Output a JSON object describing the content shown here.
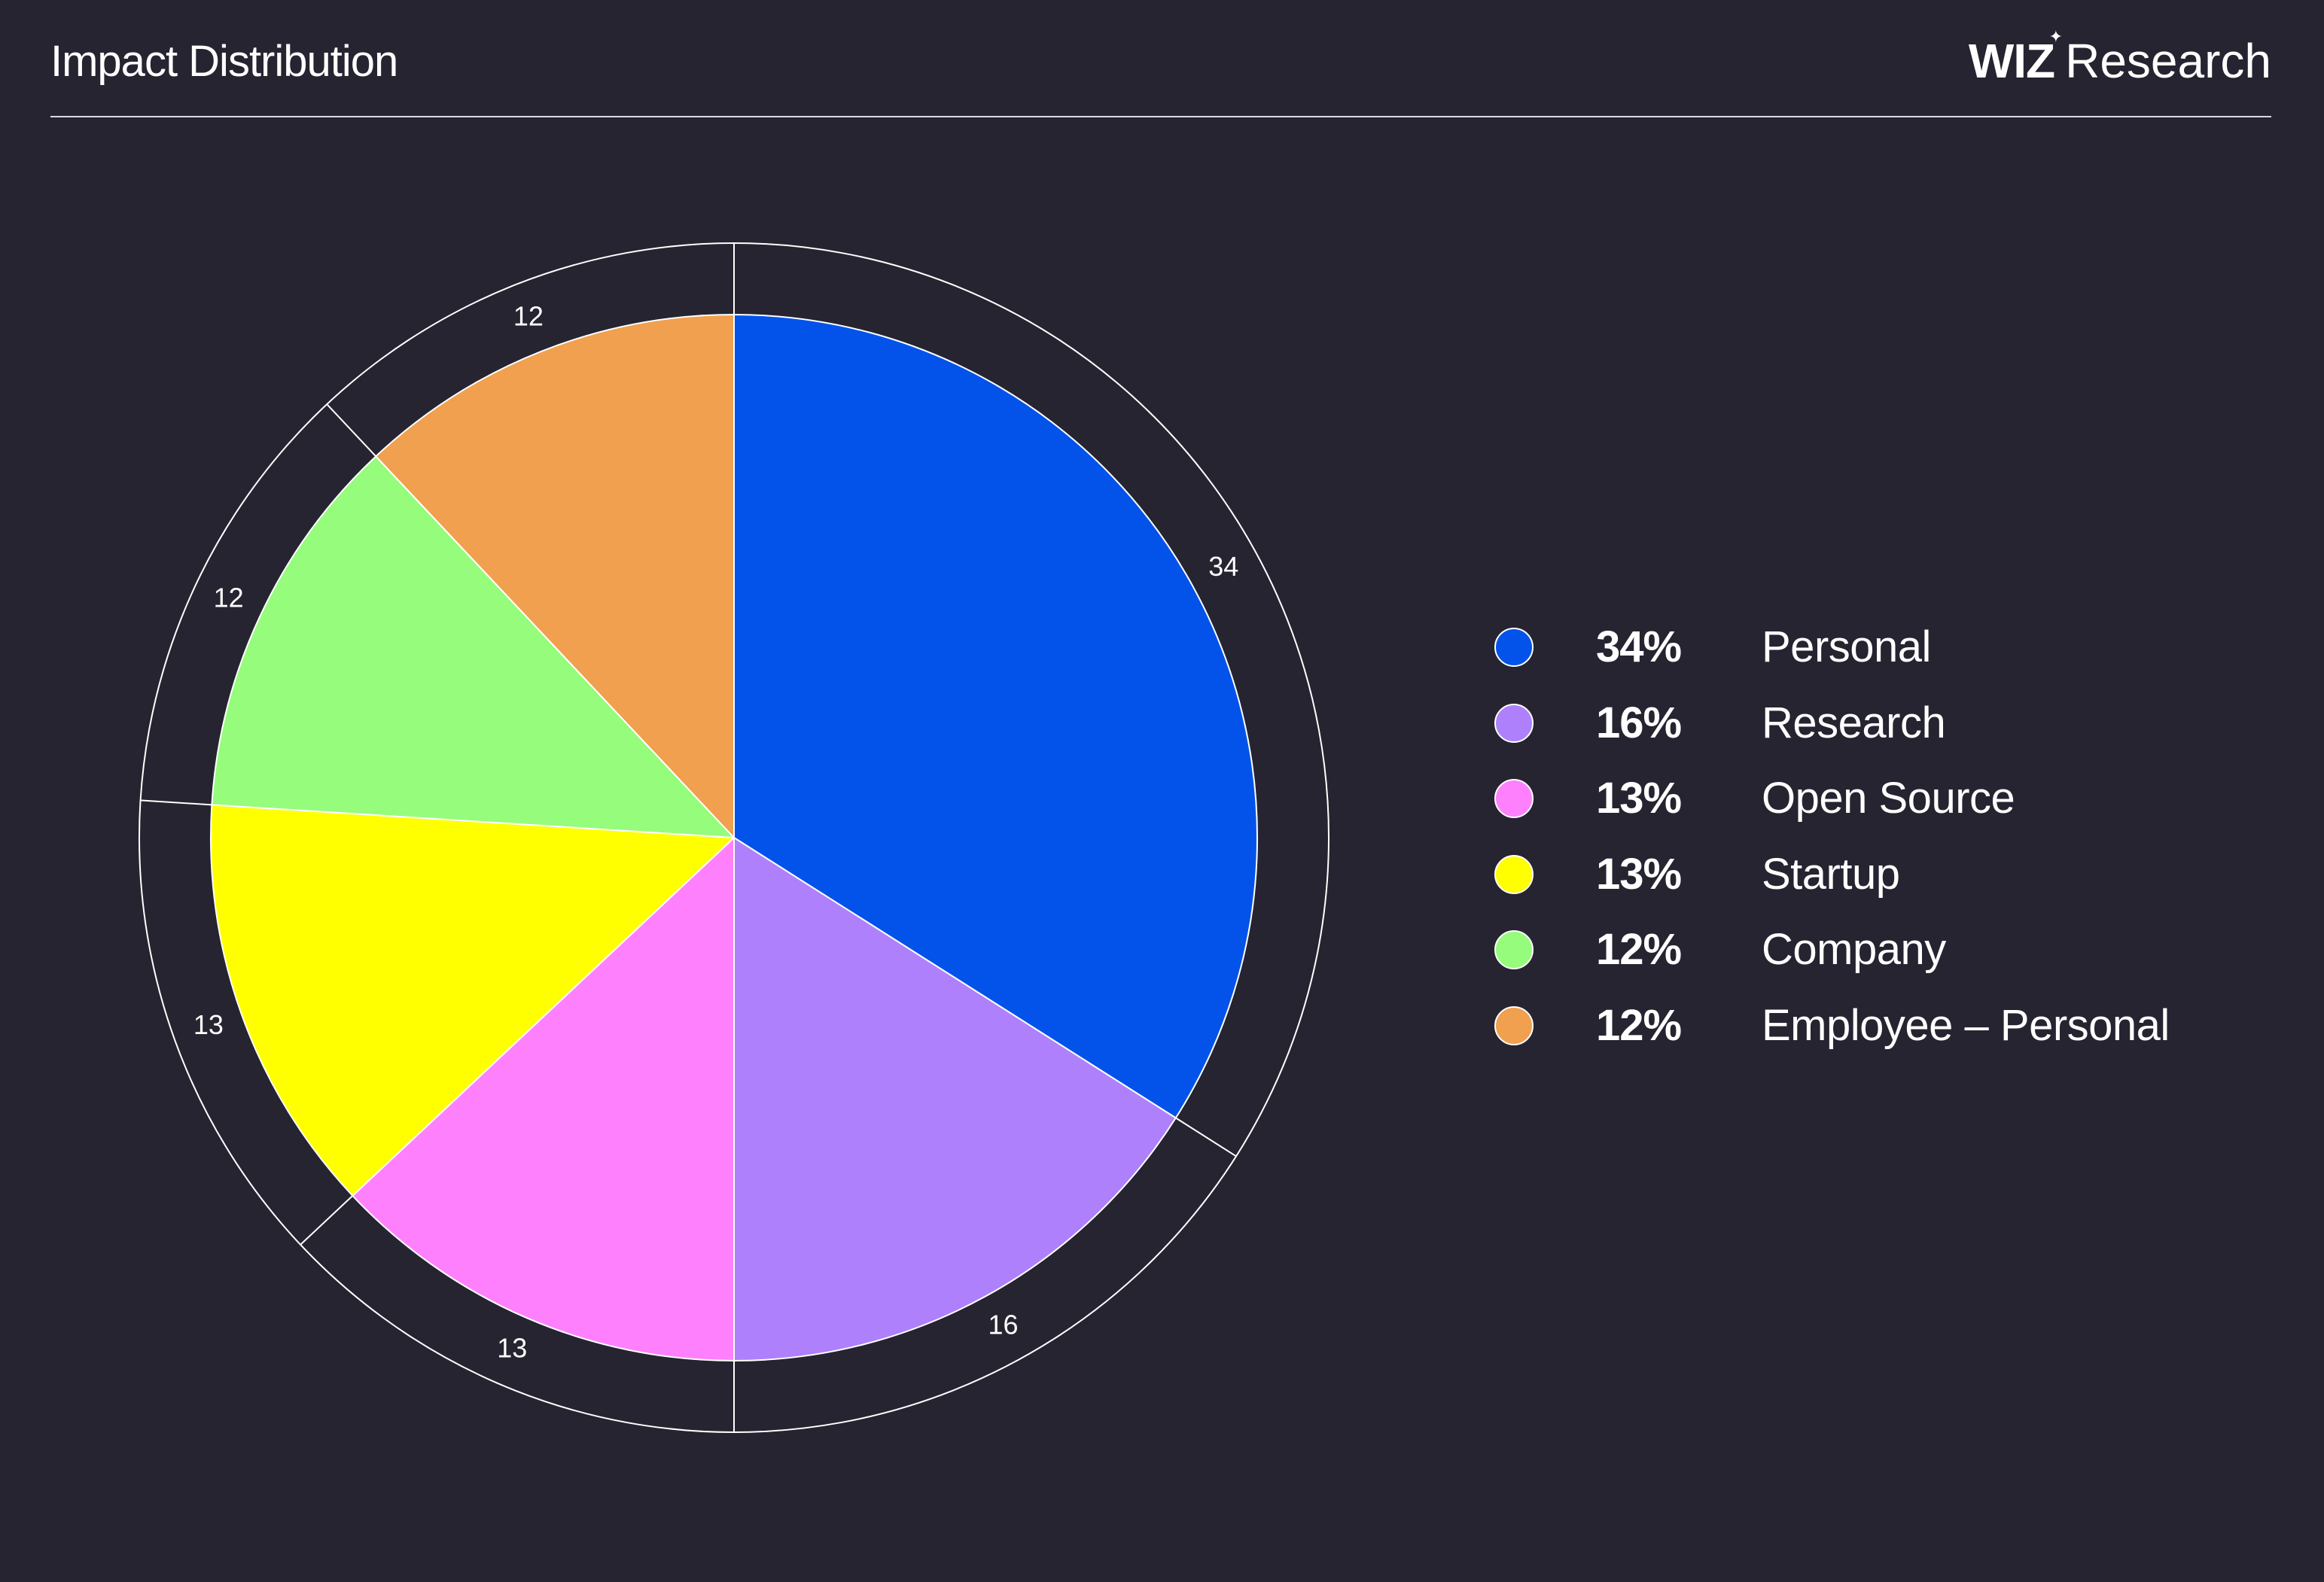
{
  "header": {
    "title": "Impact Distribution",
    "brand_mark": "WIZ",
    "brand_star": "✦",
    "brand_text": "Research"
  },
  "chart_data": {
    "type": "pie",
    "title": "Impact Distribution",
    "categories": [
      "Personal",
      "Research",
      "Open Source",
      "Startup",
      "Company",
      "Employee - Personal"
    ],
    "values": [
      34,
      16,
      13,
      13,
      12,
      12
    ],
    "value_labels": [
      "34",
      "16",
      "13",
      "13",
      "12",
      "12"
    ],
    "percent_labels": [
      "34%",
      "16%",
      "13%",
      "13%",
      "12%",
      "12%"
    ],
    "colors": [
      "#0353EA",
      "#AE80FC",
      "#FF80FC",
      "#FFFF00",
      "#95FC7C",
      "#F0A04E"
    ],
    "legend_position": "right",
    "start_angle_deg": 0,
    "direction": "clockwise"
  },
  "legend": {
    "items": [
      {
        "pct": "34%",
        "label": "Personal",
        "color": "#0353EA"
      },
      {
        "pct": "16%",
        "label": "Research",
        "color": "#AE80FC"
      },
      {
        "pct": "13%",
        "label": "Open Source",
        "color": "#FF80FC"
      },
      {
        "pct": "13%",
        "label": "Startup",
        "color": "#FFFF00"
      },
      {
        "pct": "12%",
        "label": "Company",
        "color": "#95FC7C"
      },
      {
        "pct": "12%",
        "label": "Employee – Personal",
        "color": "#F0A04E"
      }
    ]
  },
  "colors": {
    "background": "#252430",
    "line": "#ffffff"
  }
}
